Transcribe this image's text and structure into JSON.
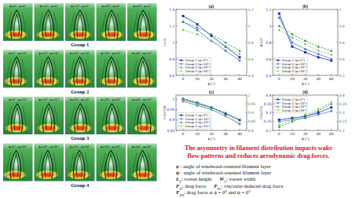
{
  "flow_panel": {
    "rows": [
      {
        "label": "Group 1",
        "images": [
          "ϕ=0°, ψ=0°",
          "ϕ=10°, ψ=0°",
          "ϕ=20°, ψ=0°",
          "ϕ=30°, ψ=0°",
          "ϕ=40°, ψ=0°"
        ]
      },
      {
        "label": "Group 2",
        "images": [
          "ϕ=0°, ψ=10°",
          "ϕ=10°, ψ=10°",
          "ϕ=20°, ψ=10°",
          "ϕ=30°, ψ=10°",
          "ϕ=40°, ψ=10°"
        ]
      },
      {
        "label": "Group 3",
        "images": [
          "ϕ=0°, ψ=20°",
          "ϕ=10°, ψ=20°",
          "ϕ=20°, ψ=20°",
          "ϕ=30°, ψ=20°",
          "ϕ=40°, ψ=20°"
        ]
      },
      {
        "label": "Group 4",
        "images": [
          "ϕ=0°, ψ=30°",
          "ϕ=10°, ψ=30°",
          "ϕ=20°, ψ=30°",
          "ϕ=30°, ψ=30°",
          "ϕ=40°, ψ=30°"
        ]
      }
    ]
  },
  "chart_data": [
    {
      "type": "line",
      "title": "(a)",
      "xlabel": "ϕ (°)",
      "ylabel": "Lv/D",
      "x": [
        0,
        10,
        20,
        30,
        40
      ],
      "xlim": [
        -5,
        45
      ],
      "xticks": [
        0,
        10,
        20,
        30,
        40
      ],
      "ylim": [
        0.6,
        1.4
      ],
      "yticks": [
        0.6,
        0.8,
        1.0,
        1.2,
        1.4
      ],
      "y2lim": [
        0.4,
        1.2
      ],
      "y2ticks": [
        0.4,
        0.6,
        0.8,
        1.0,
        1.2
      ],
      "grid": false,
      "legend": "lower left",
      "series": [
        {
          "name": "Group 1 (ψ=0°)",
          "color": "#1a2fb8",
          "marker": "square",
          "line_style": "solid",
          "values": [
            1.32,
            1.22,
            1.08,
            0.95,
            0.82
          ]
        },
        {
          "name": "Group 2 (ψ=10°)",
          "color": "#4d7fe0",
          "marker": "circle",
          "line_style": "solid",
          "values": [
            1.25,
            1.15,
            1.02,
            0.9,
            0.78
          ]
        },
        {
          "name": "Group 3 (ψ=20°)",
          "color": "#1f8f2f",
          "marker": "triangle",
          "line_style": "dashed",
          "axis": "y2",
          "values": [
            1.05,
            0.98,
            0.9,
            0.8,
            0.7
          ]
        },
        {
          "name": "Group 4 (ψ=30°)",
          "color": "#79c24a",
          "marker": "diamond",
          "line_style": "dashed",
          "axis": "y2",
          "values": [
            0.95,
            0.9,
            0.82,
            0.75,
            0.66
          ]
        }
      ]
    },
    {
      "type": "line",
      "title": "(b)",
      "xlabel": "ϕ (°)",
      "ylabel": "Wv/D",
      "x": [
        0,
        10,
        20,
        30,
        40
      ],
      "xlim": [
        -5,
        45
      ],
      "xticks": [
        0,
        10,
        20,
        30,
        40
      ],
      "ylim": [
        0.4,
        1.2
      ],
      "yticks": [
        0.4,
        0.6,
        0.8,
        1.0,
        1.2
      ],
      "y2lim": [
        0.2,
        1.0
      ],
      "y2ticks": [
        0.2,
        0.4,
        0.6,
        0.8,
        1.0
      ],
      "grid": false,
      "legend": "lower left",
      "series": [
        {
          "name": "Group 1 (ψ=0°)",
          "color": "#1a2fb8",
          "marker": "square",
          "line_style": "solid",
          "values": [
            1.15,
            0.75,
            0.68,
            0.62,
            0.58
          ]
        },
        {
          "name": "Group 2 (ψ=10°)",
          "color": "#4d7fe0",
          "marker": "circle",
          "line_style": "solid",
          "values": [
            1.1,
            0.8,
            0.72,
            0.66,
            0.6
          ]
        },
        {
          "name": "Group 3 (ψ=20°)",
          "color": "#1f8f2f",
          "marker": "triangle",
          "line_style": "dashed",
          "axis": "y2",
          "values": [
            0.8,
            0.7,
            0.62,
            0.55,
            0.5
          ]
        },
        {
          "name": "Group 4 (ψ=30°)",
          "color": "#79c24a",
          "marker": "diamond",
          "line_style": "dashed",
          "axis": "y2",
          "values": [
            0.75,
            0.66,
            0.58,
            0.5,
            0.45
          ]
        }
      ]
    },
    {
      "type": "line",
      "title": "(c)",
      "xlabel": "ϕ (°)",
      "ylabel": "FD/FD0",
      "x": [
        0,
        10,
        20,
        30,
        40
      ],
      "xlim": [
        -5,
        45
      ],
      "xticks": [
        0,
        10,
        20,
        30,
        40
      ],
      "ylim": [
        0.85,
        1.02
      ],
      "yticks": [
        0.85,
        0.9,
        0.95,
        1.0
      ],
      "y2lim": [
        0.8,
        1.0
      ],
      "y2ticks": [
        0.8,
        0.85,
        0.9,
        0.95,
        1.0
      ],
      "grid": false,
      "legend": "lower left",
      "series": [
        {
          "name": "Group 1 (ψ=0°)",
          "color": "#1a2fb8",
          "marker": "square",
          "line_style": "solid",
          "values": [
            1.0,
            0.98,
            0.96,
            0.93,
            0.9
          ]
        },
        {
          "name": "Group 2 (ψ=10°)",
          "color": "#4d7fe0",
          "marker": "circle",
          "line_style": "solid",
          "values": [
            0.99,
            0.97,
            0.95,
            0.92,
            0.88
          ]
        },
        {
          "name": "Group 3 (ψ=20°)",
          "color": "#1f8f2f",
          "marker": "triangle",
          "line_style": "dashed",
          "axis": "y2",
          "values": [
            0.98,
            0.96,
            0.93,
            0.9,
            0.86
          ]
        },
        {
          "name": "Group 4 (ψ=30°)",
          "color": "#79c24a",
          "marker": "diamond",
          "line_style": "dashed",
          "axis": "y2",
          "values": [
            0.97,
            0.95,
            0.92,
            0.88,
            0.84
          ]
        }
      ]
    },
    {
      "type": "line",
      "title": "(d)",
      "xlabel": "ϕ (°)",
      "ylabel": "FDv/FD",
      "x": [
        0,
        10,
        20,
        30,
        40
      ],
      "xlim": [
        -5,
        45
      ],
      "xticks": [
        0,
        10,
        20,
        30,
        40
      ],
      "ylim": [
        0.2,
        0.4
      ],
      "yticks": [
        0.2,
        0.25,
        0.3,
        0.35,
        0.4
      ],
      "y2lim": [
        0.2,
        0.4
      ],
      "y2ticks": [
        0.2,
        0.25,
        0.3,
        0.35,
        0.4
      ],
      "grid": false,
      "legend": "upper left",
      "series": [
        {
          "name": "Group 1 (ψ=0°)",
          "color": "#1a2fb8",
          "marker": "square",
          "line_style": "solid",
          "values": [
            0.26,
            0.27,
            0.28,
            0.3,
            0.33
          ]
        },
        {
          "name": "Group 2 (ψ=10°)",
          "color": "#4d7fe0",
          "marker": "circle",
          "line_style": "solid",
          "values": [
            0.25,
            0.26,
            0.27,
            0.29,
            0.31
          ]
        },
        {
          "name": "Group 3 (ψ=20°)",
          "color": "#1f8f2f",
          "marker": "triangle",
          "line_style": "dashed",
          "axis": "y2",
          "values": [
            0.22,
            0.25,
            0.28,
            0.31,
            0.35
          ]
        },
        {
          "name": "Group 4 (ψ=30°)",
          "color": "#79c24a",
          "marker": "diamond",
          "line_style": "dashed",
          "axis": "y2",
          "values": [
            0.23,
            0.26,
            0.29,
            0.32,
            0.36
          ]
        }
      ]
    }
  ],
  "summary": [
    "The asymmetry in filament distribution impacts wake",
    "flow patterns and reduces aerodynamic drag forces."
  ],
  "definitions": [
    [
      {
        "symbol": "ϕ",
        "text": " : angle of windward-oriented filament layer"
      }
    ],
    [
      {
        "symbol": "ψ",
        "text": " : angle of windward-oriented filament layer"
      }
    ],
    [
      {
        "symbol": "L",
        "subscript": "V",
        "text": ": vortex height"
      },
      {
        "symbol": "W",
        "subscript": "V",
        "text": ": vortex width"
      }
    ],
    [
      {
        "symbol": "F",
        "subscript": "D",
        "text": ": drag force"
      },
      {
        "symbol": "F",
        "subscript": "Dv",
        "text": ": viscosity-induced drag force"
      }
    ],
    [
      {
        "symbol": "F",
        "subscript": "D0",
        "text": ": drag force at ϕ = 0° and ψ = 0°"
      }
    ]
  ]
}
